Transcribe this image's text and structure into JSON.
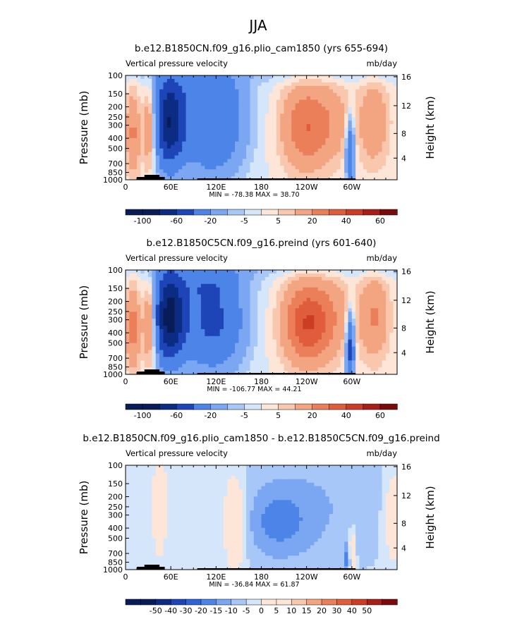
{
  "figure": {
    "title": "JJA"
  },
  "colors": {
    "blues": [
      "#081d58",
      "#0c2c84",
      "#1e45b8",
      "#2f63d6",
      "#4c84e8",
      "#7aa6f2",
      "#a7c7f8",
      "#d5e6fb"
    ],
    "reds": [
      "#fde6d8",
      "#f9c7ad",
      "#f3a480",
      "#ea7f5a",
      "#e05d3c",
      "#cd3d25",
      "#a91e17",
      "#7a0b0b"
    ],
    "topography": "#000000",
    "frame": "#000000"
  },
  "chart_data": [
    {
      "type": "heatmap",
      "title": "b.e12.B1850CN.f09_g16.plio_cam1850 (yrs 655-694)",
      "left_string": "Vertical pressure velocity",
      "right_string": "mb/day",
      "ylabel": "Pressure (mb)",
      "ylabel_right": "Height (km)",
      "y_scale": "log",
      "ylim": [
        1000,
        100
      ],
      "xlim": [
        0,
        360
      ],
      "xticks": [
        "0",
        "60E",
        "120E",
        "180",
        "120W",
        "60W"
      ],
      "yticks": [
        "100",
        "150",
        "200",
        "250",
        "300",
        "400",
        "500",
        "700",
        "850",
        "1000"
      ],
      "yticks_right": [
        "16",
        "12",
        "8",
        "4"
      ],
      "stats": "MIN = -78.38   MAX =  38.70",
      "colorbar_labels": [
        "-100",
        "-60",
        "-20",
        "-5",
        "5",
        "20",
        "40",
        "60"
      ],
      "colorbar_levels": [
        -100,
        -80,
        -60,
        -40,
        -20,
        -10,
        -5,
        0,
        5,
        10,
        20,
        30,
        40,
        50,
        60
      ],
      "grid": false,
      "legend": "bottom"
    },
    {
      "type": "heatmap",
      "title": "b.e12.B1850C5CN.f09_g16.preind (yrs 601-640)",
      "left_string": "Vertical pressure velocity",
      "right_string": "mb/day",
      "ylabel": "Pressure (mb)",
      "ylabel_right": "Height (km)",
      "y_scale": "log",
      "ylim": [
        1000,
        100
      ],
      "xlim": [
        0,
        360
      ],
      "xticks": [
        "0",
        "60E",
        "120E",
        "180",
        "120W",
        "60W"
      ],
      "yticks": [
        "100",
        "150",
        "200",
        "250",
        "300",
        "400",
        "500",
        "700",
        "850",
        "1000"
      ],
      "yticks_right": [
        "16",
        "12",
        "8",
        "4"
      ],
      "stats": "MIN = -106.77   MAX =  44.21",
      "colorbar_labels": [
        "-100",
        "-60",
        "-20",
        "-5",
        "5",
        "20",
        "40",
        "60"
      ],
      "colorbar_levels": [
        -100,
        -80,
        -60,
        -40,
        -20,
        -10,
        -5,
        0,
        5,
        10,
        20,
        30,
        40,
        50,
        60
      ],
      "grid": false,
      "legend": "bottom"
    },
    {
      "type": "heatmap",
      "title": "b.e12.B1850CN.f09_g16.plio_cam1850 - b.e12.B1850C5CN.f09_g16.preind",
      "left_string": "Vertical pressure velocity",
      "right_string": "mb/day",
      "ylabel": "Pressure (mb)",
      "ylabel_right": "Height (km)",
      "y_scale": "log",
      "ylim": [
        1000,
        100
      ],
      "xlim": [
        0,
        360
      ],
      "xticks": [
        "0",
        "60E",
        "120E",
        "180",
        "120W",
        "60W"
      ],
      "yticks": [
        "100",
        "150",
        "200",
        "250",
        "300",
        "400",
        "500",
        "700",
        "850",
        "1000"
      ],
      "yticks_right": [
        "16",
        "12",
        "8",
        "4"
      ],
      "stats": "MIN = -36.84   MAX =  61.87",
      "colorbar_labels": [
        "-50",
        "-40",
        "-30",
        "-20",
        "-15",
        "-10",
        "-5",
        "0",
        "5",
        "10",
        "15",
        "20",
        "30",
        "40",
        "50"
      ],
      "colorbar_levels": [
        -60,
        -50,
        -40,
        -30,
        -20,
        -15,
        -10,
        -5,
        0,
        5,
        10,
        15,
        20,
        30,
        40,
        50,
        60
      ],
      "grid": false,
      "legend": "bottom"
    }
  ]
}
